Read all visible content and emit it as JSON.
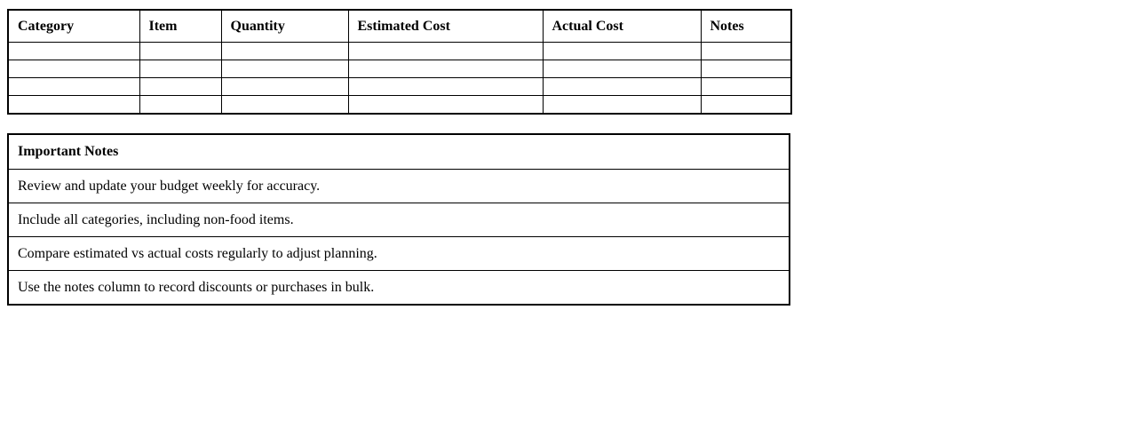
{
  "budget_table": {
    "headers": [
      "Category",
      "Item",
      "Quantity",
      "Estimated Cost",
      "Actual Cost",
      "Notes"
    ],
    "empty_row_count": 4
  },
  "notes_table": {
    "title": "Important Notes",
    "notes": [
      "Review and update your budget weekly for accuracy.",
      "Include all categories, including non-food items.",
      "Compare estimated vs actual costs regularly to adjust planning.",
      "Use the notes column to record discounts or purchases in bulk."
    ]
  },
  "colors": {
    "border": "#000000",
    "text": "#000000",
    "background": "#ffffff"
  }
}
